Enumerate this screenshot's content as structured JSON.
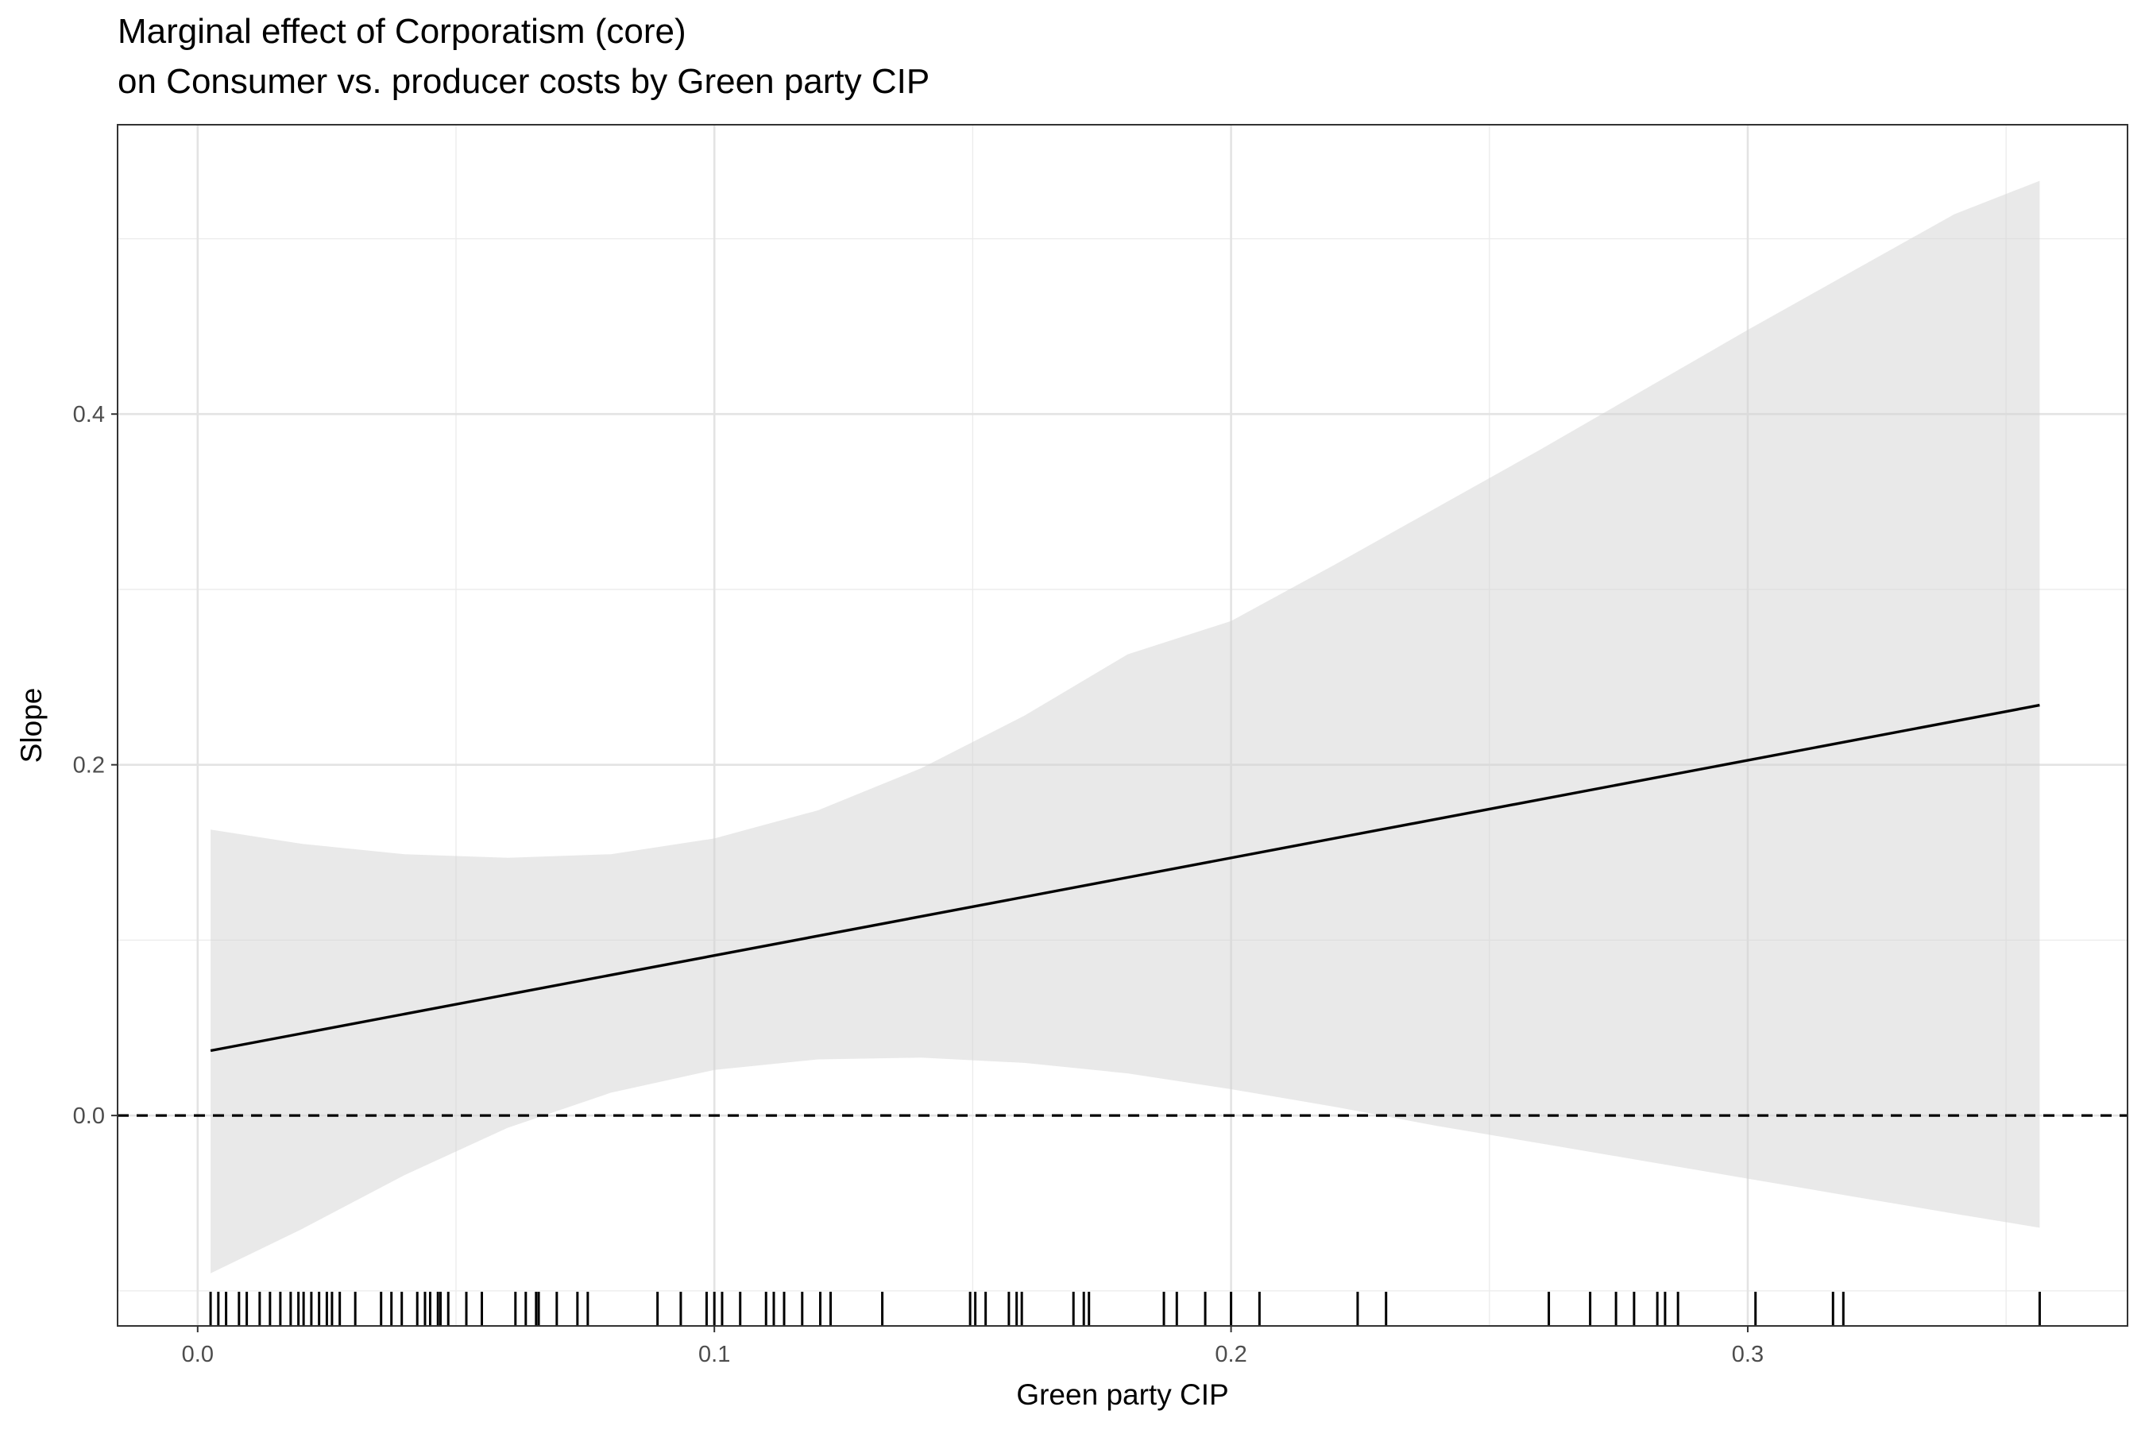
{
  "chart_data": {
    "type": "line",
    "title_line1": "Marginal effect of Corporatism (core)",
    "title_line2": "on Consumer vs. producer costs by Green party CIP",
    "xlabel": "Green party CIP",
    "ylabel": "Slope",
    "xlim": [
      -0.0155,
      0.3735
    ],
    "ylim": [
      -0.12,
      0.565
    ],
    "x_ticks": [
      {
        "value": 0.0,
        "label": "0.0"
      },
      {
        "value": 0.1,
        "label": "0.1"
      },
      {
        "value": 0.2,
        "label": "0.2"
      },
      {
        "value": 0.3,
        "label": "0.3"
      }
    ],
    "y_ticks": [
      {
        "value": 0.0,
        "label": "0.0"
      },
      {
        "value": 0.2,
        "label": "0.2"
      },
      {
        "value": 0.4,
        "label": "0.4"
      }
    ],
    "x_minor": [
      0.05,
      0.15,
      0.25,
      0.35
    ],
    "y_minor": [
      -0.1,
      0.1,
      0.3,
      0.5
    ],
    "reference_line": {
      "y": 0.0,
      "style": "dashed"
    },
    "series": [
      {
        "name": "Slope",
        "x": [
          0.0025,
          0.3565
        ],
        "y": [
          0.037,
          0.234
        ]
      }
    ],
    "ribbon": {
      "name": "Confidence interval",
      "x": [
        0.0025,
        0.02,
        0.04,
        0.06,
        0.08,
        0.1,
        0.12,
        0.14,
        0.16,
        0.18,
        0.2,
        0.22,
        0.24,
        0.26,
        0.28,
        0.3,
        0.32,
        0.34,
        0.3565
      ],
      "lower": [
        -0.09,
        -0.065,
        -0.034,
        -0.007,
        0.013,
        0.026,
        0.032,
        0.033,
        0.03,
        0.024,
        0.015,
        0.005,
        -0.006,
        -0.016,
        -0.026,
        -0.036,
        -0.046,
        -0.056,
        -0.064
      ],
      "upper": [
        0.163,
        0.155,
        0.149,
        0.147,
        0.149,
        0.158,
        0.174,
        0.198,
        0.228,
        0.263,
        0.282,
        0.314,
        0.347,
        0.38,
        0.414,
        0.448,
        0.481,
        0.514,
        0.533
      ]
    },
    "rug": [
      0.0025,
      0.004,
      0.0055,
      0.008,
      0.0095,
      0.012,
      0.014,
      0.016,
      0.018,
      0.0195,
      0.0205,
      0.022,
      0.0235,
      0.025,
      0.026,
      0.0275,
      0.0305,
      0.0355,
      0.0375,
      0.0395,
      0.0425,
      0.044,
      0.045,
      0.0465,
      0.047,
      0.0485,
      0.052,
      0.055,
      0.0615,
      0.0635,
      0.0655,
      0.066,
      0.0695,
      0.0735,
      0.0755,
      0.089,
      0.0935,
      0.0985,
      0.1,
      0.1015,
      0.105,
      0.11,
      0.1115,
      0.1135,
      0.117,
      0.1205,
      0.1225,
      0.1325,
      0.1495,
      0.1505,
      0.1525,
      0.157,
      0.1585,
      0.1595,
      0.1695,
      0.1715,
      0.1725,
      0.187,
      0.1895,
      0.195,
      0.2,
      0.2055,
      0.2245,
      0.23,
      0.2615,
      0.2695,
      0.2745,
      0.278,
      0.2825,
      0.284,
      0.2865,
      0.3015,
      0.3165,
      0.3185,
      0.3565
    ]
  }
}
